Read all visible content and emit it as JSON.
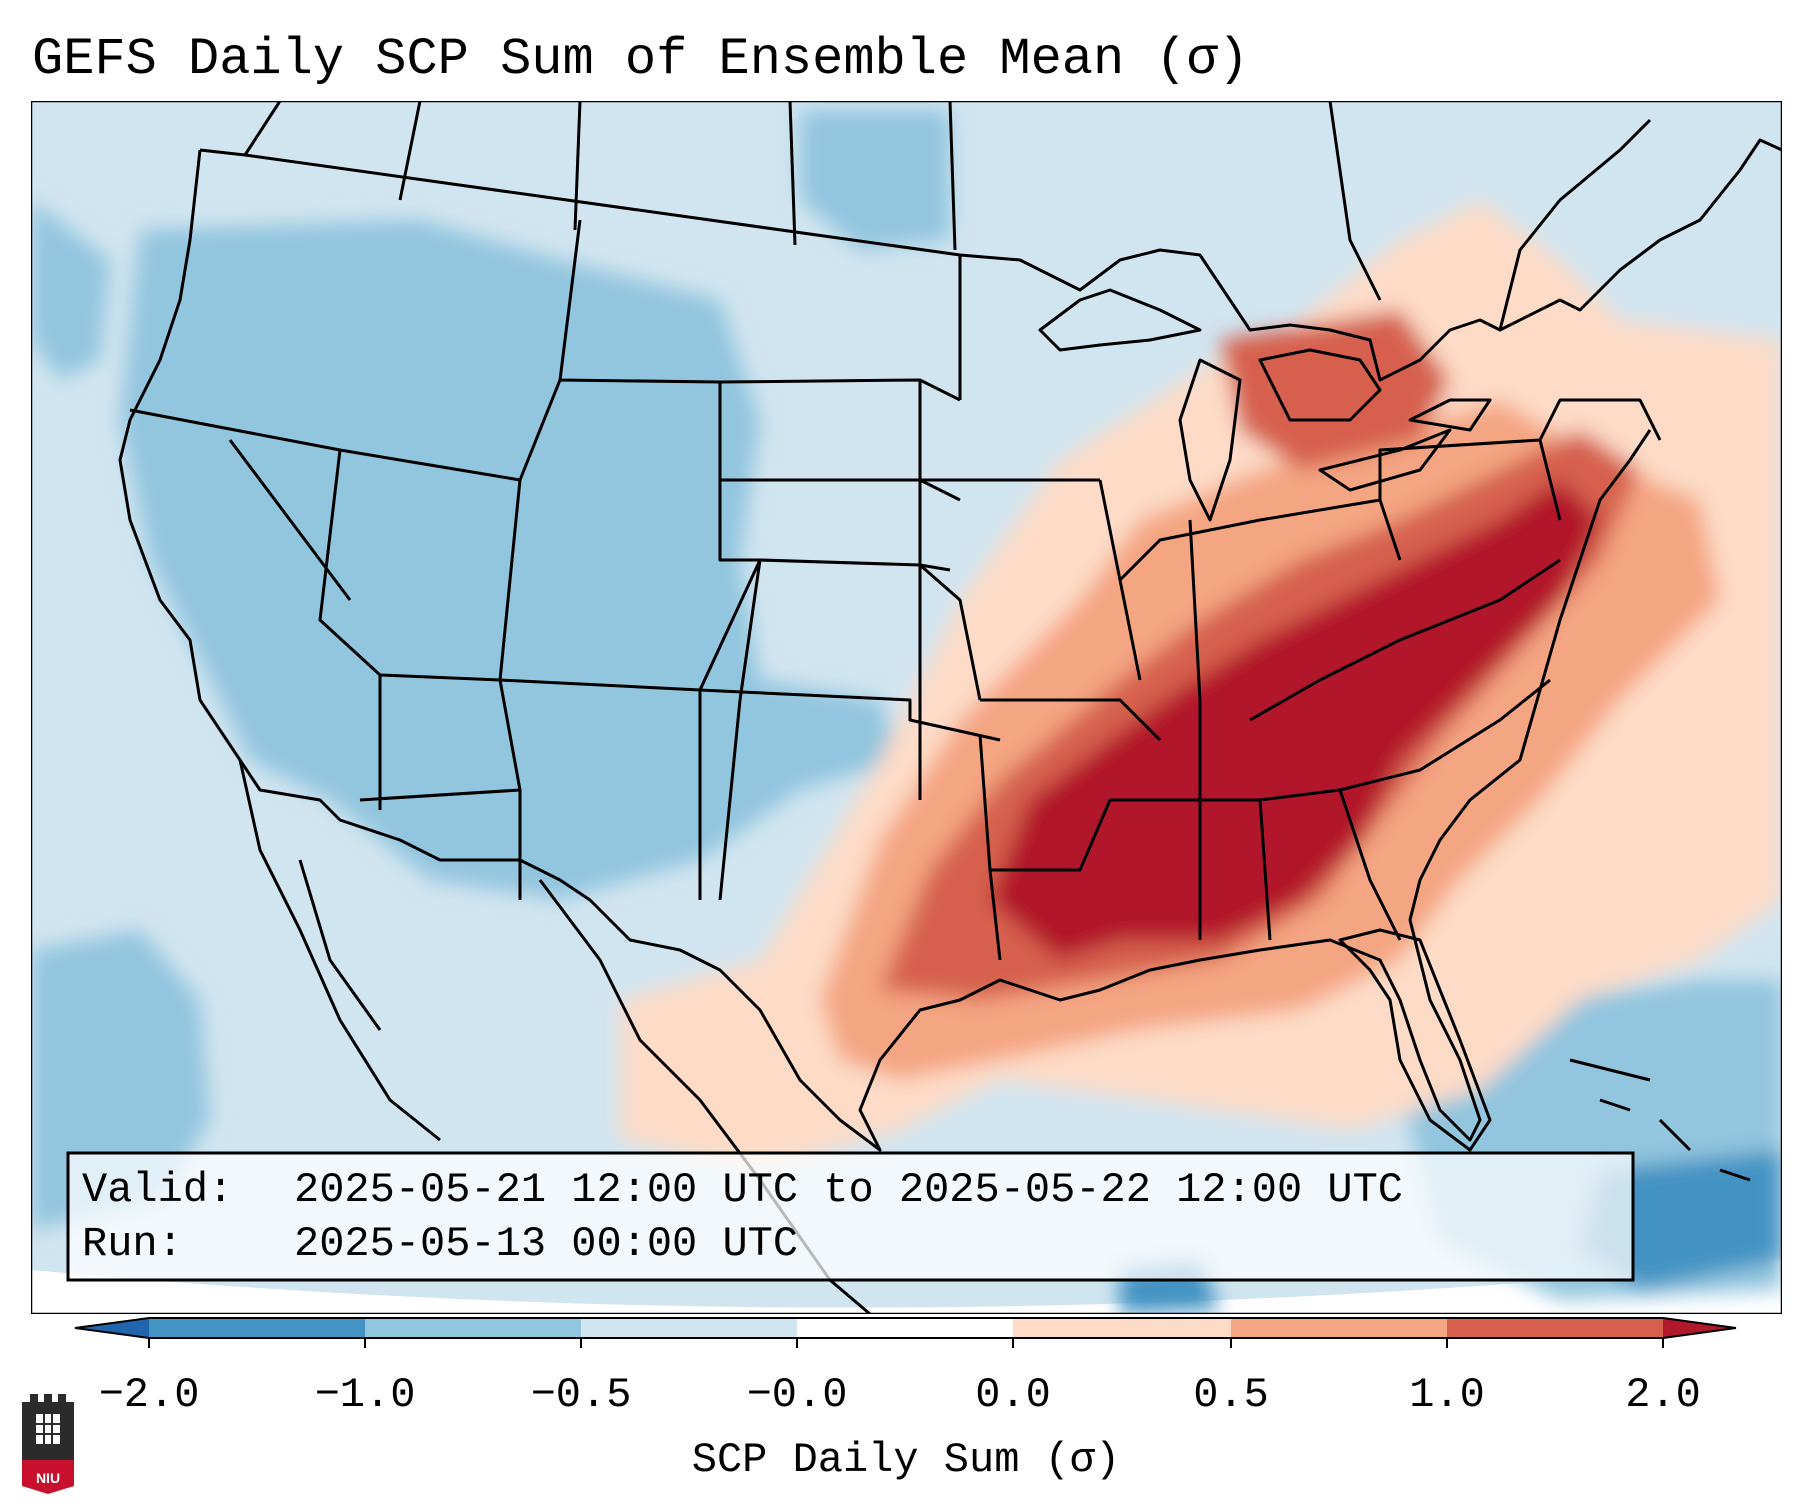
{
  "title": "GEFS Daily SCP Sum of Ensemble Mean (σ)",
  "info_box": {
    "valid_label": "Valid:",
    "valid_value": "2025-05-21 12:00 UTC to 2025-05-22 12:00 UTC",
    "run_label": "Run:",
    "run_value": "2025-05-13 00:00 UTC"
  },
  "colorbar": {
    "label": "SCP Daily Sum (σ)",
    "ticks": [
      "−2.0",
      "−1.0",
      "−0.5",
      "−0.0",
      "0.0",
      "0.5",
      "1.0",
      "2.0"
    ],
    "colors": {
      "under": "#2166ac",
      "bin1": "#4393c3",
      "bin2": "#92c5de",
      "bin3": "#d1e5f0",
      "bin4": "#fddbc7",
      "bin5": "#f4a582",
      "bin6": "#d6604d",
      "bin7": "#b2182b"
    }
  },
  "logo": {
    "text": "NIU",
    "name": "Northern Illinois University logo"
  }
}
